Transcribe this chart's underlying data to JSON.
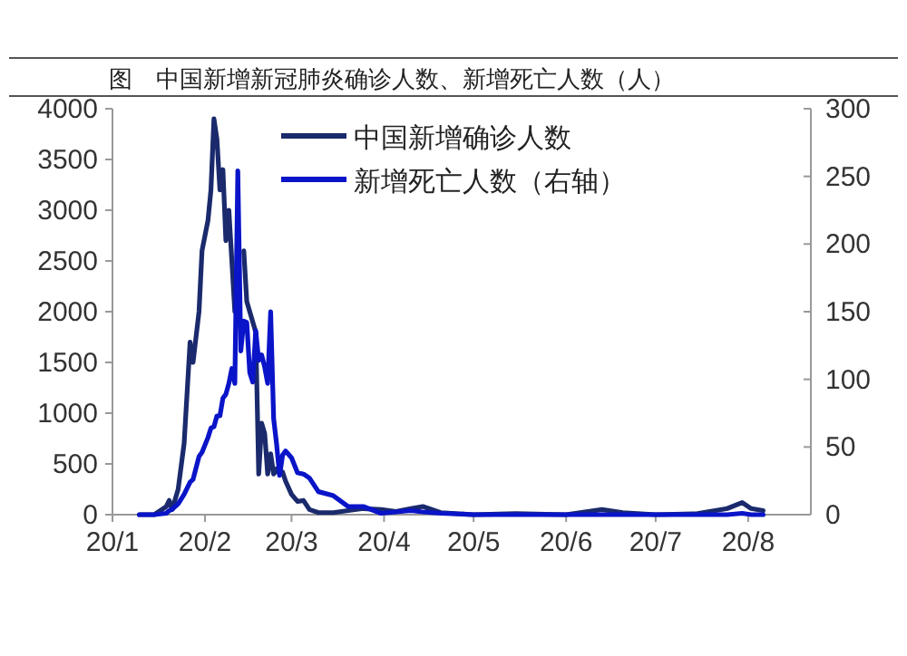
{
  "chart_data": {
    "type": "line",
    "title": "图　中国新增新冠肺炎确诊人数、新增死亡人数（人）",
    "x": [
      "--01-10",
      "--01-15",
      "--01-19",
      "--01-20",
      "--01-21",
      "--01-23",
      "--01-25",
      "--01-27",
      "--01-28",
      "--01-30",
      "--01-31",
      "--02-02",
      "--02-03",
      "--02-04",
      "--02-05",
      "--02-06",
      "--02-07",
      "--02-08",
      "--02-09",
      "--02-10",
      "--02-11",
      "--02-12",
      "--02-13",
      "--02-14",
      "--02-15",
      "--02-16",
      "--02-17",
      "--02-18",
      "--02-19",
      "--02-20",
      "--02-21",
      "--02-22",
      "--02-23",
      "--02-24",
      "--02-25",
      "--02-26",
      "--02-27",
      "--02-28",
      "--03-01",
      "--03-03",
      "--03-05",
      "--03-07",
      "--03-10",
      "--03-15",
      "--03-20",
      "--03-25",
      "--03-31",
      "--04-05",
      "--04-10",
      "--04-14",
      "--04-20",
      "--05-01",
      "--05-15",
      "--06-01",
      "--06-13",
      "--06-20",
      "--07-01",
      "--07-15",
      "--07-25",
      "--07-30",
      "--08-02",
      "--08-06"
    ],
    "series": [
      {
        "name": "中国新增确诊人数",
        "color": "#1a2a6c",
        "values": [
          0,
          0,
          80,
          140,
          50,
          250,
          700,
          1700,
          1500,
          2000,
          2600,
          2900,
          3200,
          3900,
          3700,
          3200,
          3400,
          2700,
          3000,
          2500,
          2000,
          null,
          null,
          2600,
          2100,
          2000,
          1900,
          1800,
          400,
          900,
          800,
          400,
          600,
          400,
          450,
          400,
          420,
          330,
          200,
          130,
          140,
          50,
          20,
          20,
          40,
          60,
          50,
          30,
          60,
          80,
          20,
          0,
          10,
          0,
          50,
          20,
          0,
          10,
          60,
          120,
          60,
          40
        ]
      },
      {
        "name": "新增死亡人数（右轴）",
        "color": "#0a14c8",
        "axis": "y2",
        "values": [
          0,
          0,
          1,
          3,
          4,
          8,
          15,
          24,
          26,
          43,
          46,
          57,
          64,
          65,
          73,
          73,
          86,
          89,
          97,
          108,
          97,
          254,
          121,
          143,
          142,
          105,
          98,
          136,
          114,
          118,
          109,
          97,
          150,
          71,
          52,
          29,
          44,
          47,
          42,
          31,
          30,
          27,
          17,
          14,
          6,
          6,
          1,
          2,
          3,
          2,
          1,
          0,
          0,
          0,
          0,
          0,
          0,
          0,
          0,
          1,
          0,
          0
        ]
      }
    ],
    "xlim": [
      "--01-01",
      "--08-22"
    ],
    "xticks": [
      {
        "value": "--01-01",
        "label": "20/1"
      },
      {
        "value": "--02-01",
        "label": "20/2"
      },
      {
        "value": "--03-01",
        "label": "20/3"
      },
      {
        "value": "--04-01",
        "label": "20/4"
      },
      {
        "value": "--05-01",
        "label": "20/5"
      },
      {
        "value": "--06-01",
        "label": "20/6"
      },
      {
        "value": "--07-01",
        "label": "20/7"
      },
      {
        "value": "--08-01",
        "label": "20/8"
      }
    ],
    "ylim": [
      0,
      4000
    ],
    "yticks": [
      0,
      500,
      1000,
      1500,
      2000,
      2500,
      3000,
      3500,
      4000
    ],
    "y2lim": [
      0,
      300
    ],
    "y2ticks": [
      0,
      50,
      100,
      150,
      200,
      250,
      300
    ],
    "legend": "top right",
    "grid": false
  }
}
